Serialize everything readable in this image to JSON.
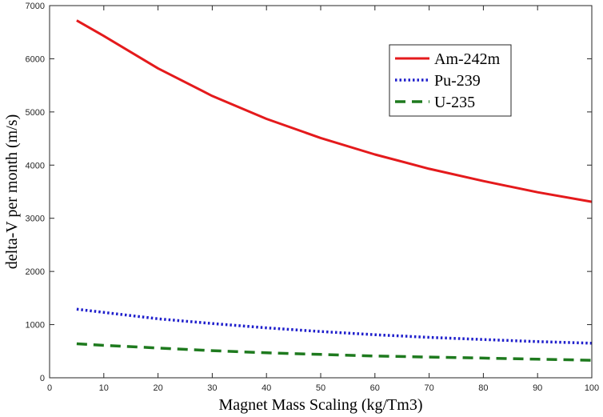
{
  "chart_data": {
    "type": "line",
    "title": "",
    "xlabel": "Magnet Mass Scaling (kg/Tm3)",
    "ylabel": "delta-V per month (m/s)",
    "xlim": [
      0,
      100
    ],
    "ylim": [
      0,
      7000
    ],
    "xticks": [
      0,
      10,
      20,
      30,
      40,
      50,
      60,
      70,
      80,
      90,
      100
    ],
    "yticks": [
      0,
      1000,
      2000,
      3000,
      4000,
      5000,
      6000,
      7000
    ],
    "grid": false,
    "legend_position": "top-right",
    "x": [
      5,
      10,
      20,
      30,
      40,
      50,
      60,
      70,
      80,
      90,
      100
    ],
    "series": [
      {
        "name": "Am-242m",
        "color": "#e41a1c",
        "style": "solid",
        "values": [
          6720,
          6430,
          5820,
          5300,
          4870,
          4510,
          4200,
          3930,
          3700,
          3490,
          3310
        ]
      },
      {
        "name": "Pu-239",
        "color": "#1f1fcc",
        "style": "dotted",
        "values": [
          1290,
          1230,
          1110,
          1020,
          940,
          870,
          810,
          760,
          720,
          680,
          650
        ]
      },
      {
        "name": "U-235",
        "color": "#1e7a1e",
        "style": "dashed",
        "values": [
          640,
          610,
          560,
          510,
          470,
          440,
          410,
          390,
          370,
          350,
          330
        ]
      }
    ]
  }
}
